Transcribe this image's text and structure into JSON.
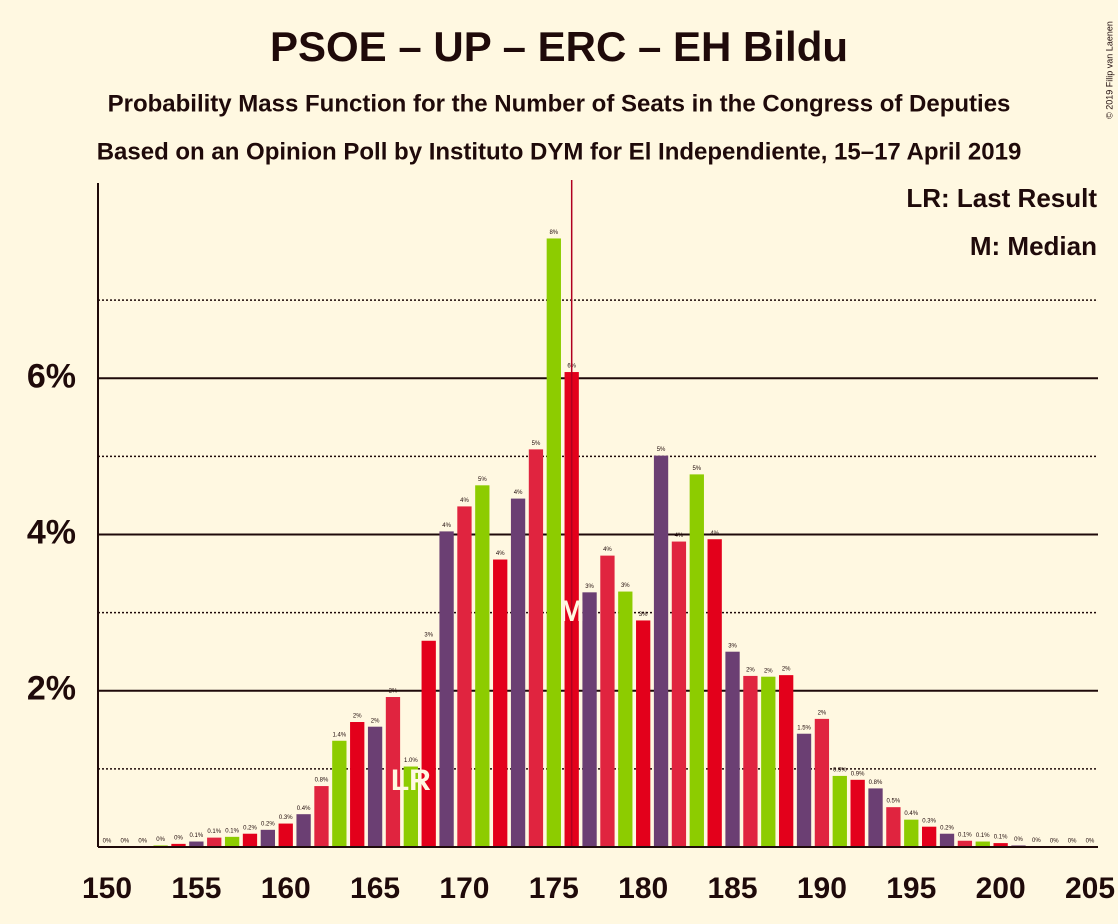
{
  "chart_data": {
    "type": "bar",
    "title": "PSOE – UP – ERC – EH Bildu",
    "subtitle": "Probability Mass Function for the Number of Seats in the Congress of Deputies",
    "subtitle2": "Based on an Opinion Poll by Instituto DYM for El Independiente, 15–17 April 2019",
    "copyright": "© 2019 Filip van Laenen",
    "x": [
      150,
      151,
      152,
      153,
      154,
      155,
      156,
      157,
      158,
      159,
      160,
      161,
      162,
      163,
      164,
      165,
      166,
      167,
      168,
      169,
      170,
      171,
      172,
      173,
      174,
      175,
      176,
      177,
      178,
      179,
      180,
      181,
      182,
      183,
      184,
      185,
      186,
      187,
      188,
      189,
      190,
      191,
      192,
      193,
      194,
      195,
      196,
      197,
      198,
      199,
      200,
      201,
      202,
      203,
      204,
      205
    ],
    "values": [
      0,
      0,
      0,
      0.02,
      0.04,
      0.07,
      0.12,
      0.13,
      0.17,
      0.22,
      0.3,
      0.42,
      0.78,
      1.36,
      1.6,
      1.54,
      1.92,
      1.03,
      2.64,
      4.04,
      4.36,
      4.63,
      3.68,
      4.46,
      5.09,
      7.79,
      6.08,
      3.26,
      3.73,
      3.27,
      2.9,
      5.01,
      3.91,
      4.77,
      3.94,
      2.5,
      2.19,
      2.18,
      2.2,
      1.45,
      1.64,
      0.91,
      0.86,
      0.75,
      0.51,
      0.35,
      0.26,
      0.17,
      0.08,
      0.07,
      0.05,
      0.02,
      0.01,
      0,
      0,
      0
    ],
    "value_labels": [
      "0%",
      "0%",
      "0%",
      "0%",
      "0%",
      "0.1%",
      "0.1%",
      "0.1%",
      "0.2%",
      "0.2%",
      "0.3%",
      "0.4%",
      "0.8%",
      "1.4%",
      "2%",
      "2%",
      "2%",
      "1.0%",
      "3%",
      "4%",
      "4%",
      "5%",
      "4%",
      "4%",
      "5%",
      "8%",
      "6%",
      "3%",
      "4%",
      "3%",
      "3%",
      "5%",
      "4%",
      "5%",
      "4%",
      "3%",
      "2%",
      "2%",
      "2%",
      "1.5%",
      "2%",
      "0.9%",
      "0.9%",
      "0.8%",
      "0.5%",
      "0.4%",
      "0.3%",
      "0.2%",
      "0.1%",
      "0.1%",
      "0.1%",
      "0%",
      "0%",
      "0%",
      "0%",
      "0%"
    ],
    "colors": [
      "#e3001b",
      "#6b3f73",
      "#e0243f",
      "#8dcc00",
      "#e3001b",
      "#6b3f73",
      "#e0243f",
      "#8dcc00",
      "#e3001b",
      "#6b3f73",
      "#e3001b",
      "#6b3f73",
      "#e0243f",
      "#8dcc00",
      "#e3001b",
      "#6b3f73",
      "#e0243f",
      "#8dcc00",
      "#e3001b",
      "#6b3f73",
      "#e0243f",
      "#8dcc00",
      "#e3001b",
      "#6b3f73",
      "#e0243f",
      "#8dcc00",
      "#e3001b",
      "#6b3f73",
      "#e0243f",
      "#8dcc00",
      "#e3001b",
      "#6b3f73",
      "#e0243f",
      "#8dcc00",
      "#e3001b",
      "#6b3f73",
      "#e0243f",
      "#8dcc00",
      "#e3001b",
      "#6b3f73",
      "#e0243f",
      "#8dcc00",
      "#e3001b",
      "#6b3f73",
      "#e0243f",
      "#8dcc00",
      "#e3001b",
      "#6b3f73",
      "#e0243f",
      "#8dcc00",
      "#e3001b",
      "#6b3f73",
      "#e0243f",
      "#8dcc00",
      "#e3001b",
      "#6b3f73"
    ],
    "xlim": [
      150,
      205
    ],
    "xticks": [
      150,
      155,
      160,
      165,
      170,
      175,
      180,
      185,
      190,
      195,
      200,
      205
    ],
    "ylim": [
      0,
      8.5
    ],
    "yticks": [
      {
        "value": 2,
        "label": "2%"
      },
      {
        "value": 4,
        "label": "4%"
      },
      {
        "value": 6,
        "label": "6%"
      }
    ],
    "minor_yticks": [
      1,
      3,
      5,
      7
    ],
    "grid": true,
    "median": {
      "seat": 176,
      "label": "M"
    },
    "last_result": {
      "seat": 167,
      "label": "LR"
    },
    "legend": [
      "LR: Last Result",
      "M: Median"
    ],
    "legend_position": "upper right"
  }
}
